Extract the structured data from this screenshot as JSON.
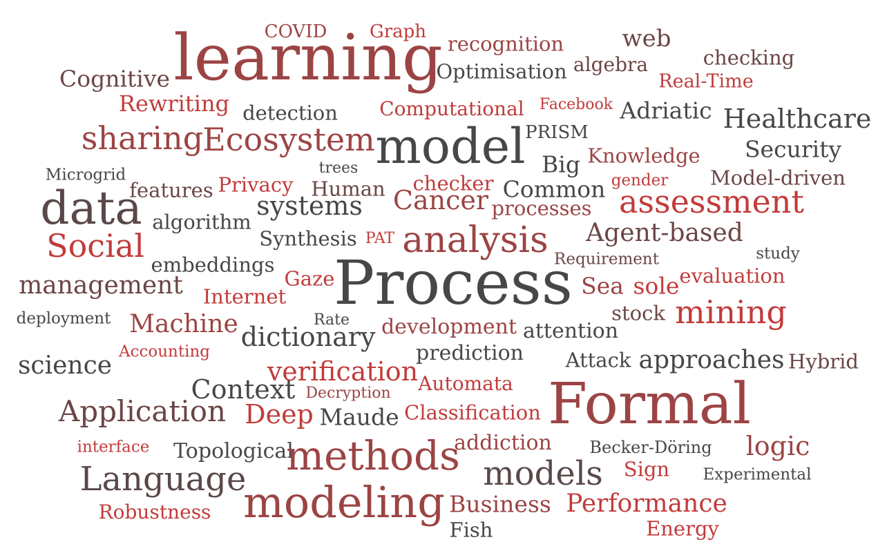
{
  "colors": {
    "dark": "#474747",
    "red": "#c23b3b",
    "brown": "#9c4444",
    "muted": "#6b4545",
    "plum": "#5a4848"
  },
  "words": [
    {
      "text": "learning",
      "tone": "brown"
    },
    {
      "text": "COVID",
      "tone": "brown"
    },
    {
      "text": "Graph",
      "tone": "red"
    },
    {
      "text": "recognition",
      "tone": "brown"
    },
    {
      "text": "web",
      "tone": "muted"
    },
    {
      "text": "checking",
      "tone": "muted"
    },
    {
      "text": "algebra",
      "tone": "muted"
    },
    {
      "text": "Cognitive",
      "tone": "muted"
    },
    {
      "text": "Optimisation",
      "tone": "dark"
    },
    {
      "text": "Real-Time",
      "tone": "red"
    },
    {
      "text": "Rewriting",
      "tone": "red"
    },
    {
      "text": "detection",
      "tone": "dark"
    },
    {
      "text": "Computational",
      "tone": "red"
    },
    {
      "text": "Facebook",
      "tone": "red"
    },
    {
      "text": "Adriatic",
      "tone": "dark"
    },
    {
      "text": "Healthcare",
      "tone": "dark"
    },
    {
      "text": "sharing",
      "tone": "brown"
    },
    {
      "text": "Ecosystem",
      "tone": "brown"
    },
    {
      "text": "model",
      "tone": "dark"
    },
    {
      "text": "PRISM",
      "tone": "dark"
    },
    {
      "text": "Security",
      "tone": "dark"
    },
    {
      "text": "Knowledge",
      "tone": "brown"
    },
    {
      "text": "Big",
      "tone": "dark"
    },
    {
      "text": "Microgrid",
      "tone": "dark"
    },
    {
      "text": "trees",
      "tone": "dark"
    },
    {
      "text": "gender",
      "tone": "red"
    },
    {
      "text": "Model-driven",
      "tone": "muted"
    },
    {
      "text": "features",
      "tone": "muted"
    },
    {
      "text": "Privacy",
      "tone": "red"
    },
    {
      "text": "Human",
      "tone": "muted"
    },
    {
      "text": "checker",
      "tone": "red"
    },
    {
      "text": "Common",
      "tone": "dark"
    },
    {
      "text": "data",
      "tone": "plum"
    },
    {
      "text": "systems",
      "tone": "dark"
    },
    {
      "text": "Cancer",
      "tone": "brown"
    },
    {
      "text": "processes",
      "tone": "brown"
    },
    {
      "text": "assessment",
      "tone": "red"
    },
    {
      "text": "algorithm",
      "tone": "dark"
    },
    {
      "text": "Social",
      "tone": "red"
    },
    {
      "text": "Synthesis",
      "tone": "dark"
    },
    {
      "text": "PAT",
      "tone": "red"
    },
    {
      "text": "analysis",
      "tone": "brown"
    },
    {
      "text": "Agent-based",
      "tone": "muted"
    },
    {
      "text": "study",
      "tone": "dark"
    },
    {
      "text": "Requirement",
      "tone": "muted"
    },
    {
      "text": "embeddings",
      "tone": "dark"
    },
    {
      "text": "Process",
      "tone": "dark"
    },
    {
      "text": "management",
      "tone": "muted"
    },
    {
      "text": "Gaze",
      "tone": "red"
    },
    {
      "text": "evaluation",
      "tone": "red"
    },
    {
      "text": "Sea",
      "tone": "brown"
    },
    {
      "text": "sole",
      "tone": "red"
    },
    {
      "text": "Internet",
      "tone": "red"
    },
    {
      "text": "stock",
      "tone": "muted"
    },
    {
      "text": "mining",
      "tone": "red"
    },
    {
      "text": "deployment",
      "tone": "dark"
    },
    {
      "text": "Machine",
      "tone": "brown"
    },
    {
      "text": "Rate",
      "tone": "dark"
    },
    {
      "text": "dictionary",
      "tone": "dark"
    },
    {
      "text": "development",
      "tone": "brown"
    },
    {
      "text": "attention",
      "tone": "dark"
    },
    {
      "text": "Accounting",
      "tone": "red"
    },
    {
      "text": "prediction",
      "tone": "dark"
    },
    {
      "text": "Attack",
      "tone": "dark"
    },
    {
      "text": "approaches",
      "tone": "dark"
    },
    {
      "text": "Hybrid",
      "tone": "muted"
    },
    {
      "text": "science",
      "tone": "dark"
    },
    {
      "text": "verification",
      "tone": "red"
    },
    {
      "text": "Automata",
      "tone": "red"
    },
    {
      "text": "Context",
      "tone": "dark"
    },
    {
      "text": "Decryption",
      "tone": "brown"
    },
    {
      "text": "Formal",
      "tone": "brown"
    },
    {
      "text": "Application",
      "tone": "muted"
    },
    {
      "text": "Deep",
      "tone": "red"
    },
    {
      "text": "Maude",
      "tone": "dark"
    },
    {
      "text": "Classification",
      "tone": "red"
    },
    {
      "text": "interface",
      "tone": "red"
    },
    {
      "text": "Topological",
      "tone": "dark"
    },
    {
      "text": "methods",
      "tone": "brown"
    },
    {
      "text": "addiction",
      "tone": "brown"
    },
    {
      "text": "Becker-Döring",
      "tone": "dark"
    },
    {
      "text": "logic",
      "tone": "brown"
    },
    {
      "text": "Language",
      "tone": "plum"
    },
    {
      "text": "models",
      "tone": "plum"
    },
    {
      "text": "Sign",
      "tone": "red"
    },
    {
      "text": "Experimental",
      "tone": "dark"
    },
    {
      "text": "modeling",
      "tone": "brown"
    },
    {
      "text": "Business",
      "tone": "brown"
    },
    {
      "text": "Performance",
      "tone": "red"
    },
    {
      "text": "Robustness",
      "tone": "red"
    },
    {
      "text": "Fish",
      "tone": "dark"
    },
    {
      "text": "Energy",
      "tone": "red"
    }
  ]
}
